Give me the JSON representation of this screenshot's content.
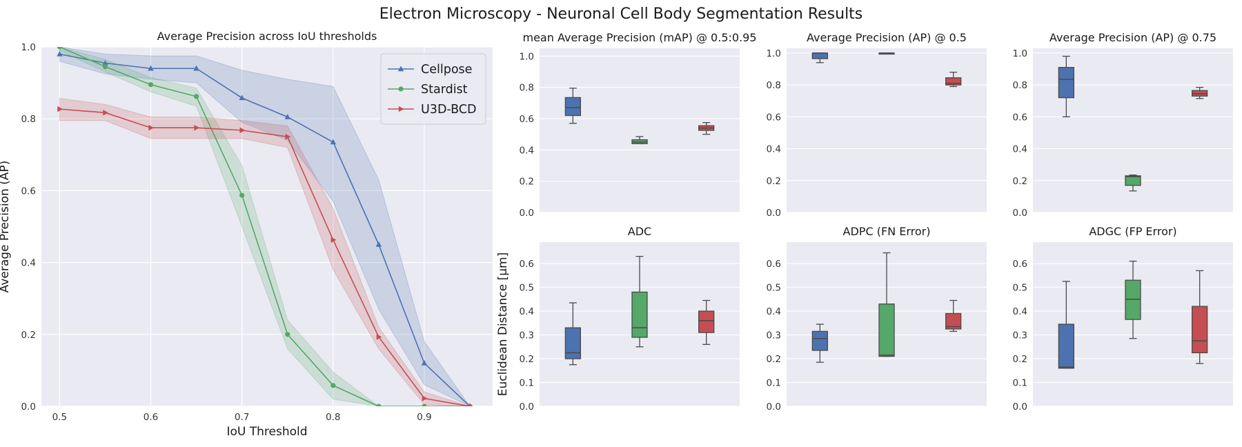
{
  "figure": {
    "title": "Electron Microscopy - Neuronal Cell Body Segmentation Results"
  },
  "chart_data": [
    {
      "id": "ap_curve",
      "type": "line",
      "title": "Average Precision across IoU thresholds",
      "xlabel": "IoU Threshold",
      "ylabel": "Average Precision (AP)",
      "xlim": [
        0.48,
        0.975
      ],
      "ylim": [
        0,
        1.0
      ],
      "xticks": [
        "0.5",
        "0.6",
        "0.7",
        "0.8",
        "0.9"
      ],
      "yticks": [
        "0.0",
        "0.2",
        "0.4",
        "0.6",
        "0.8",
        "1.0"
      ],
      "legend": "top-right",
      "grid": true,
      "x": [
        0.5,
        0.55,
        0.6,
        0.65,
        0.7,
        0.75,
        0.8,
        0.85,
        0.9,
        0.95
      ],
      "series": [
        {
          "name": "Cellpose",
          "color": "#4c72b0",
          "marker": "triangle-up",
          "values": [
            0.98,
            0.955,
            0.94,
            0.94,
            0.858,
            0.805,
            0.735,
            0.45,
            0.12,
            0.0
          ],
          "lower": [
            0.96,
            0.925,
            0.91,
            0.9,
            0.79,
            0.74,
            0.57,
            0.27,
            0.06,
            0.0
          ],
          "upper": [
            1.0,
            0.98,
            0.975,
            0.975,
            0.935,
            0.91,
            0.89,
            0.63,
            0.18,
            0.0
          ]
        },
        {
          "name": "Stardist",
          "color": "#55a868",
          "marker": "circle",
          "values": [
            1.0,
            0.945,
            0.895,
            0.862,
            0.587,
            0.2,
            0.058,
            0.0,
            0.0,
            0.0
          ],
          "lower": [
            0.99,
            0.93,
            0.875,
            0.835,
            0.5,
            0.16,
            0.02,
            0.0,
            0.0,
            0.0
          ],
          "upper": [
            1.0,
            0.965,
            0.915,
            0.885,
            0.67,
            0.24,
            0.095,
            0.0,
            0.0,
            0.0
          ]
        },
        {
          "name": "U3D-BCD",
          "color": "#c44e52",
          "marker": "triangle-right",
          "values": [
            0.827,
            0.817,
            0.775,
            0.775,
            0.768,
            0.75,
            0.463,
            0.193,
            0.022,
            0.0
          ],
          "lower": [
            0.795,
            0.795,
            0.745,
            0.745,
            0.745,
            0.72,
            0.38,
            0.16,
            0.005,
            0.0
          ],
          "upper": [
            0.857,
            0.84,
            0.805,
            0.805,
            0.795,
            0.78,
            0.55,
            0.22,
            0.04,
            0.0
          ]
        }
      ]
    },
    {
      "id": "map",
      "type": "box",
      "title": "mean Average Precision (mAP) @ 0.5:0.95",
      "ylabel": "",
      "ylim": [
        0,
        1.05
      ],
      "yticks": [
        "0.0",
        "0.2",
        "0.4",
        "0.6",
        "0.8",
        "1.0"
      ],
      "grid": true,
      "series": [
        {
          "name": "Cellpose",
          "color": "#4c72b0",
          "min": 0.57,
          "q1": 0.62,
          "median": 0.67,
          "q3": 0.735,
          "max": 0.795
        },
        {
          "name": "Stardist",
          "color": "#55a868",
          "min": 0.44,
          "q1": 0.44,
          "median": 0.45,
          "q3": 0.465,
          "max": 0.485
        },
        {
          "name": "U3D-BCD",
          "color": "#c44e52",
          "min": 0.5,
          "q1": 0.525,
          "median": 0.54,
          "q3": 0.555,
          "max": 0.575
        }
      ]
    },
    {
      "id": "ap50",
      "type": "box",
      "title": "Average Precision (AP) @ 0.5",
      "ylabel": "",
      "ylim": [
        0,
        1.03
      ],
      "yticks": [
        "0.0",
        "0.2",
        "0.4",
        "0.6",
        "0.8",
        "1.0"
      ],
      "grid": true,
      "series": [
        {
          "name": "Cellpose",
          "color": "#4c72b0",
          "min": 0.94,
          "q1": 0.965,
          "median": 1.0,
          "q3": 1.0,
          "max": 1.0
        },
        {
          "name": "Stardist",
          "color": "#55a868",
          "min": 0.995,
          "q1": 0.998,
          "median": 1.0,
          "q3": 1.0,
          "max": 1.0
        },
        {
          "name": "U3D-BCD",
          "color": "#c44e52",
          "min": 0.79,
          "q1": 0.8,
          "median": 0.81,
          "q3": 0.845,
          "max": 0.88
        }
      ]
    },
    {
      "id": "ap75",
      "type": "box",
      "title": "Average Precision (AP) @ 0.75",
      "ylabel": "",
      "ylim": [
        0,
        1.03
      ],
      "yticks": [
        "0.0",
        "0.2",
        "0.4",
        "0.6",
        "0.8",
        "1.0"
      ],
      "grid": true,
      "series": [
        {
          "name": "Cellpose",
          "color": "#4c72b0",
          "min": 0.6,
          "q1": 0.72,
          "median": 0.835,
          "q3": 0.91,
          "max": 0.98
        },
        {
          "name": "Stardist",
          "color": "#55a868",
          "min": 0.135,
          "q1": 0.17,
          "median": 0.225,
          "q3": 0.23,
          "max": 0.235
        },
        {
          "name": "U3D-BCD",
          "color": "#c44e52",
          "min": 0.715,
          "q1": 0.73,
          "median": 0.745,
          "q3": 0.765,
          "max": 0.785
        }
      ]
    },
    {
      "id": "adc",
      "type": "box",
      "title": "ADC",
      "ylabel": "Euclidean Distance [μm]",
      "ylim": [
        0,
        0.69
      ],
      "yticks": [
        "0.0",
        "0.1",
        "0.2",
        "0.3",
        "0.4",
        "0.5",
        "0.6"
      ],
      "grid": true,
      "series": [
        {
          "name": "Cellpose",
          "color": "#4c72b0",
          "min": 0.175,
          "q1": 0.2,
          "median": 0.225,
          "q3": 0.33,
          "max": 0.435
        },
        {
          "name": "Stardist",
          "color": "#55a868",
          "min": 0.25,
          "q1": 0.29,
          "median": 0.33,
          "q3": 0.48,
          "max": 0.63
        },
        {
          "name": "U3D-BCD",
          "color": "#c44e52",
          "min": 0.26,
          "q1": 0.31,
          "median": 0.36,
          "q3": 0.4,
          "max": 0.445
        }
      ]
    },
    {
      "id": "adpc",
      "type": "box",
      "title": "ADPC (FN Error)",
      "ylabel": "",
      "ylim": [
        0,
        0.69
      ],
      "yticks": [
        "0.0",
        "0.1",
        "0.2",
        "0.3",
        "0.4",
        "0.5",
        "0.6"
      ],
      "grid": true,
      "series": [
        {
          "name": "Cellpose",
          "color": "#4c72b0",
          "min": 0.185,
          "q1": 0.235,
          "median": 0.285,
          "q3": 0.315,
          "max": 0.345
        },
        {
          "name": "Stardist",
          "color": "#55a868",
          "min": 0.21,
          "q1": 0.21,
          "median": 0.215,
          "q3": 0.43,
          "max": 0.645
        },
        {
          "name": "U3D-BCD",
          "color": "#c44e52",
          "min": 0.315,
          "q1": 0.325,
          "median": 0.335,
          "q3": 0.39,
          "max": 0.445
        }
      ]
    },
    {
      "id": "adgc",
      "type": "box",
      "title": "ADGC (FP Error)",
      "ylabel": "",
      "ylim": [
        0,
        0.69
      ],
      "yticks": [
        "0.0",
        "0.1",
        "0.2",
        "0.3",
        "0.4",
        "0.5",
        "0.6"
      ],
      "grid": true,
      "series": [
        {
          "name": "Cellpose",
          "color": "#4c72b0",
          "min": 0.16,
          "q1": 0.16,
          "median": 0.165,
          "q3": 0.345,
          "max": 0.525
        },
        {
          "name": "Stardist",
          "color": "#55a868",
          "min": 0.285,
          "q1": 0.365,
          "median": 0.45,
          "q3": 0.53,
          "max": 0.61
        },
        {
          "name": "U3D-BCD",
          "color": "#c44e52",
          "min": 0.18,
          "q1": 0.225,
          "median": 0.275,
          "q3": 0.42,
          "max": 0.57
        }
      ]
    }
  ]
}
